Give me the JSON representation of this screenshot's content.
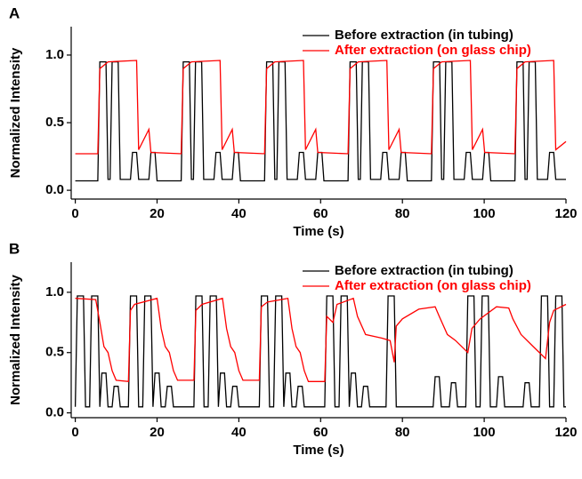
{
  "chart_data": [
    {
      "type": "line",
      "panel_label": "A",
      "xlabel": "Time (s)",
      "ylabel": "Normalized Intensity",
      "xlim": [
        -1,
        120
      ],
      "ylim": [
        -0.065,
        1.21
      ],
      "xticks": [
        0,
        20,
        40,
        60,
        80,
        100,
        120
      ],
      "yticks": [
        {
          "value": 0,
          "label": "0.0"
        },
        {
          "value": 0.5,
          "label": "0.5"
        },
        {
          "value": 1,
          "label": "1.0"
        }
      ],
      "legend": "upper right",
      "series": [
        {
          "name": "Before extraction (in tubing)",
          "color": "#000000",
          "x": [
            0,
            4,
            5.5,
            6,
            7.5,
            8,
            8.5,
            9,
            10.5,
            11,
            13.5,
            14,
            15,
            15.5,
            18,
            18.5,
            19.5,
            20,
            24.4,
            25.9,
            26.4,
            27.9,
            28.4,
            28.9,
            29.4,
            30.9,
            31.4,
            33.9,
            34.4,
            35.4,
            35.9,
            38.4,
            38.9,
            39.9,
            40.4,
            44.8,
            46.3,
            46.8,
            48.3,
            48.8,
            49.3,
            49.8,
            51.3,
            51.8,
            54.3,
            54.8,
            55.8,
            56.3,
            58.8,
            59.3,
            60.3,
            60.8,
            65.2,
            66.7,
            67.2,
            68.7,
            69.2,
            69.7,
            70.2,
            71.7,
            72.2,
            74.7,
            75.2,
            76.2,
            76.7,
            79.2,
            79.7,
            80.7,
            81.2,
            85.6,
            87.1,
            87.6,
            89.1,
            89.6,
            90.1,
            90.6,
            92.1,
            92.6,
            95.1,
            95.6,
            96.6,
            97.1,
            99.6,
            100.1,
            101.1,
            101.6,
            106,
            107.5,
            108,
            109.5,
            110,
            110.5,
            111,
            112.5,
            113,
            115.5,
            116,
            117,
            117.5,
            120
          ],
          "values": [
            0.07,
            0.07,
            0.07,
            0.95,
            0.95,
            0.08,
            0.08,
            0.95,
            0.95,
            0.08,
            0.08,
            0.28,
            0.28,
            0.08,
            0.08,
            0.28,
            0.28,
            0.07,
            0.07,
            0.07,
            0.95,
            0.95,
            0.08,
            0.08,
            0.95,
            0.95,
            0.08,
            0.08,
            0.28,
            0.28,
            0.08,
            0.08,
            0.28,
            0.28,
            0.07,
            0.07,
            0.07,
            0.95,
            0.95,
            0.08,
            0.08,
            0.95,
            0.95,
            0.08,
            0.08,
            0.28,
            0.28,
            0.08,
            0.08,
            0.28,
            0.28,
            0.07,
            0.07,
            0.07,
            0.95,
            0.95,
            0.08,
            0.08,
            0.95,
            0.95,
            0.08,
            0.08,
            0.28,
            0.28,
            0.08,
            0.08,
            0.28,
            0.28,
            0.07,
            0.07,
            0.07,
            0.95,
            0.95,
            0.08,
            0.08,
            0.95,
            0.95,
            0.08,
            0.08,
            0.28,
            0.28,
            0.08,
            0.08,
            0.28,
            0.28,
            0.07,
            0.07,
            0.07,
            0.95,
            0.95,
            0.08,
            0.08,
            0.95,
            0.95,
            0.08,
            0.08,
            0.28,
            0.28,
            0.08,
            0.08
          ]
        },
        {
          "name": "After extraction (on glass chip)",
          "color": "#ff0000",
          "x": [
            0,
            5.5,
            6,
            8,
            15,
            15.5,
            18,
            18.5,
            25.9,
            26.4,
            28.4,
            35.4,
            35.9,
            38.4,
            38.9,
            46.3,
            46.8,
            48.8,
            55.8,
            56.3,
            58.8,
            59.3,
            66.7,
            67.2,
            69.2,
            76.2,
            76.7,
            79.2,
            79.7,
            87.1,
            87.6,
            89.6,
            96.6,
            97.1,
            99.6,
            100.1,
            107.5,
            108,
            110,
            117,
            117.5,
            120
          ],
          "values": [
            0.27,
            0.27,
            0.9,
            0.95,
            0.96,
            0.3,
            0.45,
            0.28,
            0.27,
            0.9,
            0.95,
            0.96,
            0.3,
            0.45,
            0.28,
            0.27,
            0.9,
            0.95,
            0.96,
            0.3,
            0.45,
            0.28,
            0.27,
            0.9,
            0.95,
            0.96,
            0.3,
            0.45,
            0.28,
            0.27,
            0.9,
            0.95,
            0.96,
            0.3,
            0.45,
            0.28,
            0.27,
            0.9,
            0.95,
            0.96,
            0.3,
            0.36
          ]
        }
      ]
    },
    {
      "type": "line",
      "panel_label": "B",
      "xlabel": "Time (s)",
      "ylabel": "Normalized Intensity",
      "xlim": [
        -1,
        120
      ],
      "ylim": [
        -0.04,
        1.25
      ],
      "xticks": [
        0,
        20,
        40,
        60,
        80,
        100,
        120
      ],
      "yticks": [
        {
          "value": 0,
          "label": "0.0"
        },
        {
          "value": 0.5,
          "label": "0.5"
        },
        {
          "value": 1,
          "label": "1.0"
        }
      ],
      "legend": "upper right",
      "series": [
        {
          "name": "Before extraction (in tubing)",
          "color": "#000000",
          "x": [
            0,
            0.5,
            2,
            2.5,
            3.5,
            4,
            5.5,
            6,
            6.5,
            7.5,
            8,
            9,
            9.5,
            10.5,
            11,
            13,
            13.5,
            15,
            15.5,
            16.5,
            17,
            18.5,
            19,
            19.5,
            20.5,
            21,
            22,
            22.5,
            23.5,
            24,
            29,
            29.5,
            31,
            31.5,
            32.5,
            33,
            34.5,
            35,
            35.5,
            36.5,
            37,
            38,
            38.5,
            39.5,
            40,
            45,
            45.5,
            47,
            47.5,
            48.5,
            49,
            50.5,
            51,
            51.5,
            52.5,
            53,
            54,
            54.5,
            55.5,
            56,
            61,
            61.5,
            63,
            63.5,
            64.5,
            65,
            66.5,
            67,
            67.5,
            68.5,
            69,
            70,
            70.5,
            71.5,
            72,
            76,
            76.5,
            78,
            78.5,
            87.5,
            88,
            89,
            89.5,
            91.5,
            92,
            93,
            93.5,
            95.5,
            96,
            97.5,
            98,
            99,
            99.5,
            101,
            101.5,
            103,
            103.5,
            104.5,
            105,
            109.5,
            110,
            111,
            111.5,
            113.5,
            114,
            115.5,
            116,
            117,
            117.5,
            119,
            119.5,
            120
          ],
          "values": [
            0.05,
            0.97,
            0.97,
            0.05,
            0.05,
            0.97,
            0.97,
            0.05,
            0.33,
            0.33,
            0.05,
            0.05,
            0.22,
            0.22,
            0.05,
            0.05,
            0.97,
            0.97,
            0.05,
            0.05,
            0.97,
            0.97,
            0.05,
            0.33,
            0.33,
            0.05,
            0.05,
            0.22,
            0.22,
            0.05,
            0.05,
            0.97,
            0.97,
            0.05,
            0.05,
            0.97,
            0.97,
            0.05,
            0.33,
            0.33,
            0.05,
            0.05,
            0.22,
            0.22,
            0.05,
            0.05,
            0.97,
            0.97,
            0.05,
            0.05,
            0.97,
            0.97,
            0.05,
            0.33,
            0.33,
            0.05,
            0.05,
            0.22,
            0.22,
            0.05,
            0.05,
            0.97,
            0.97,
            0.05,
            0.05,
            0.97,
            0.97,
            0.05,
            0.33,
            0.33,
            0.05,
            0.05,
            0.22,
            0.22,
            0.05,
            0.05,
            0.97,
            0.97,
            0.05,
            0.05,
            0.3,
            0.3,
            0.05,
            0.05,
            0.25,
            0.25,
            0.05,
            0.05,
            0.97,
            0.97,
            0.05,
            0.05,
            0.97,
            0.97,
            0.05,
            0.05,
            0.3,
            0.3,
            0.05,
            0.05,
            0.25,
            0.25,
            0.05,
            0.05,
            0.97,
            0.97,
            0.05,
            0.05,
            0.97,
            0.97,
            0.05,
            0.05
          ]
        },
        {
          "name": "After extraction (on glass chip)",
          "color": "#ff0000",
          "x": [
            0,
            5,
            6,
            7,
            8,
            9,
            10,
            13,
            13.5,
            14.5,
            20,
            21,
            22,
            23,
            24,
            25,
            29,
            29.5,
            31,
            36,
            37,
            38,
            39,
            40,
            41,
            45,
            45.5,
            47,
            52,
            53,
            54,
            55,
            56,
            57,
            61,
            61.5,
            63,
            64,
            68,
            69,
            71,
            75,
            77,
            78,
            78.5,
            80,
            84,
            88,
            89,
            91,
            93,
            96,
            97,
            99,
            103,
            106,
            107,
            109,
            112,
            115,
            116,
            117,
            120
          ],
          "values": [
            0.95,
            0.94,
            0.75,
            0.55,
            0.5,
            0.35,
            0.27,
            0.26,
            0.85,
            0.9,
            0.95,
            0.7,
            0.55,
            0.5,
            0.35,
            0.27,
            0.27,
            0.85,
            0.9,
            0.95,
            0.7,
            0.55,
            0.5,
            0.35,
            0.27,
            0.27,
            0.88,
            0.92,
            0.95,
            0.7,
            0.55,
            0.5,
            0.35,
            0.26,
            0.26,
            0.8,
            0.75,
            0.9,
            0.95,
            0.8,
            0.65,
            0.62,
            0.6,
            0.42,
            0.72,
            0.78,
            0.86,
            0.88,
            0.8,
            0.65,
            0.6,
            0.5,
            0.7,
            0.78,
            0.88,
            0.87,
            0.78,
            0.65,
            0.55,
            0.45,
            0.75,
            0.85,
            0.9
          ]
        }
      ]
    }
  ]
}
